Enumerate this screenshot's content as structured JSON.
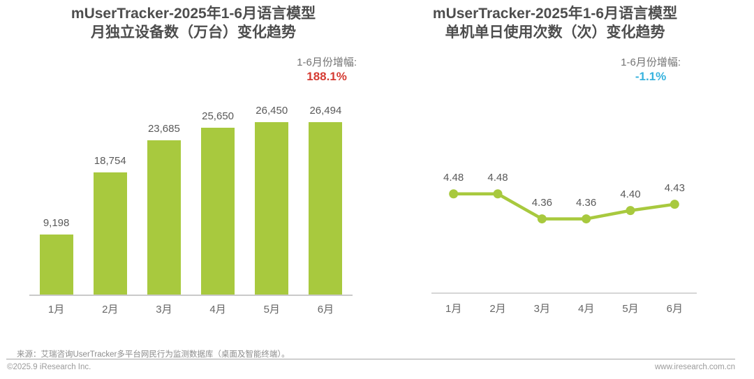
{
  "chart_data": [
    {
      "type": "bar",
      "title": "mUserTracker-2025年1-6月语言模型月独立设备数（万台）变化趋势",
      "title_lines": [
        "mUserTracker-2025年1-6月语言模型",
        "月独立设备数（万台）变化趋势"
      ],
      "categories": [
        "1月",
        "2月",
        "3月",
        "4月",
        "5月",
        "6月"
      ],
      "values": [
        9198,
        18754,
        23685,
        25650,
        26450,
        26494
      ],
      "value_labels": [
        "9,198",
        "18,754",
        "23,685",
        "25,650",
        "26,450",
        "26,494"
      ],
      "xlabel": "",
      "ylabel": "月独立设备数（万台）",
      "ylim": [
        0,
        30000
      ],
      "grid": false,
      "legend": "none",
      "bar_color": "#a8c93e",
      "annotation": {
        "label": "1-6月份增幅:",
        "value": "188.1%",
        "value_color": "#d53b32"
      }
    },
    {
      "type": "line",
      "title": "mUserTracker-2025年1-6月语言模型单机单日使用次数（次）变化趋势",
      "title_lines": [
        "mUserTracker-2025年1-6月语言模型",
        "单机单日使用次数（次）变化趋势"
      ],
      "categories": [
        "1月",
        "2月",
        "3月",
        "4月",
        "5月",
        "6月"
      ],
      "values": [
        4.48,
        4.48,
        4.36,
        4.36,
        4.4,
        4.43
      ],
      "value_labels": [
        "4.48",
        "4.48",
        "4.36",
        "4.36",
        "4.40",
        "4.43"
      ],
      "xlabel": "",
      "ylabel": "单机单日使用次数（次）",
      "ylim": [
        4.0,
        4.64
      ],
      "grid": false,
      "legend": "none",
      "line_color": "#a8c93e",
      "marker": "circle",
      "annotation": {
        "label": "1-6月份增幅:",
        "value": "-1.1%",
        "value_color": "#38b3de"
      }
    }
  ],
  "colors": {
    "accent_green": "#a8c93e",
    "growth_up_red": "#d53b32",
    "growth_down_blue": "#38b3de",
    "title_gray": "#4d4d4d",
    "axis_gray": "#c9c9c9"
  },
  "footer": {
    "source": "来源：艾瑞咨询UserTracker多平台网民行为监测数据库（桌面及智能终端）。",
    "copyright": "©2025.9 iResearch Inc.",
    "website": "www.iresearch.com.cn"
  }
}
